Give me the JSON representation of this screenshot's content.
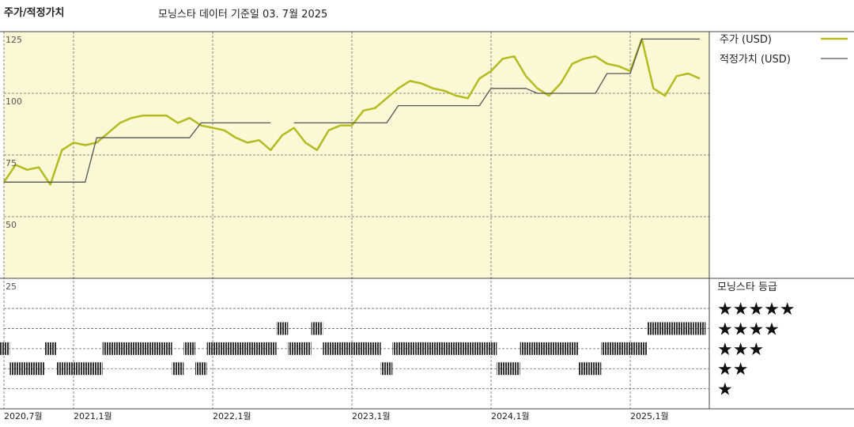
{
  "chart_data": [
    {
      "type": "line",
      "title": "주가/적정가치",
      "subtitle": "모닝스타 데이터 기준일 03. 7월 2025",
      "x": [
        "2020-07",
        "2020-08",
        "2020-09",
        "2020-10",
        "2020-11",
        "2020-12",
        "2021-01",
        "2021-02",
        "2021-03",
        "2021-04",
        "2021-05",
        "2021-06",
        "2021-07",
        "2021-08",
        "2021-09",
        "2021-10",
        "2021-11",
        "2021-12",
        "2022-01",
        "2022-02",
        "2022-03",
        "2022-04",
        "2022-05",
        "2022-06",
        "2022-07",
        "2022-08",
        "2022-09",
        "2022-10",
        "2022-11",
        "2022-12",
        "2023-01",
        "2023-02",
        "2023-03",
        "2023-04",
        "2023-05",
        "2023-06",
        "2023-07",
        "2023-08",
        "2023-09",
        "2023-10",
        "2023-11",
        "2023-12",
        "2024-01",
        "2024-02",
        "2024-03",
        "2024-04",
        "2024-05",
        "2024-06",
        "2024-07",
        "2024-08",
        "2024-09",
        "2024-10",
        "2024-11",
        "2024-12",
        "2025-01",
        "2025-02",
        "2025-03",
        "2025-04",
        "2025-05",
        "2025-06",
        "2025-07"
      ],
      "xlim": [
        "2020-07",
        "2025-07"
      ],
      "xticks": [
        {
          "value": "2020-07",
          "label": "2020,7월"
        },
        {
          "value": "2021-01",
          "label": "2021,1월"
        },
        {
          "value": "2022-01",
          "label": "2022,1월"
        },
        {
          "value": "2023-01",
          "label": "2023,1월"
        },
        {
          "value": "2024-01",
          "label": "2024,1월"
        },
        {
          "value": "2025-01",
          "label": "2025,1월"
        }
      ],
      "ylim": [
        25,
        125
      ],
      "yticks": [
        25,
        50,
        75,
        100,
        125
      ],
      "grid": true,
      "series": [
        {
          "name": "주가 (USD)",
          "color": "#b3bb1e",
          "values": [
            64,
            71,
            69,
            70,
            63,
            77,
            80,
            79,
            80,
            84,
            88,
            90,
            91,
            91,
            91,
            88,
            90,
            87,
            86,
            85,
            82,
            80,
            81,
            77,
            83,
            86,
            80,
            77,
            85,
            87,
            87,
            93,
            94,
            98,
            102,
            105,
            104,
            102,
            101,
            99,
            98,
            106,
            109,
            114,
            115,
            107,
            102,
            99,
            104,
            112,
            114,
            115,
            112,
            111,
            109,
            122,
            102,
            99,
            107,
            108,
            106
          ]
        },
        {
          "name": "적정가치 (USD)",
          "color": "#555555",
          "values": [
            64,
            64,
            64,
            64,
            64,
            64,
            64,
            64,
            82,
            82,
            82,
            82,
            82,
            82,
            82,
            82,
            82,
            88,
            88,
            88,
            88,
            88,
            88,
            88,
            null,
            88,
            88,
            88,
            88,
            88,
            88,
            88,
            88,
            88,
            95,
            95,
            95,
            95,
            95,
            95,
            95,
            95,
            102,
            102,
            102,
            102,
            100,
            100,
            100,
            100,
            100,
            100,
            108,
            108,
            108,
            122,
            122,
            122,
            122,
            122,
            122
          ]
        }
      ]
    },
    {
      "type": "strip",
      "title": "모닝스타 등급",
      "ylim": [
        0,
        6.5
      ],
      "yticks": [
        {
          "value": 5,
          "label": "★★★★★"
        },
        {
          "value": 4,
          "label": "★★★★"
        },
        {
          "value": 3,
          "label": "★★★"
        },
        {
          "value": 2,
          "label": "★★"
        },
        {
          "value": 1,
          "label": "★"
        }
      ],
      "color": "#333333",
      "values": [
        3,
        2,
        2,
        2,
        3,
        2,
        2,
        2,
        2,
        3,
        3,
        3,
        3,
        3,
        3,
        2,
        3,
        2,
        3,
        3,
        3,
        3,
        3,
        3,
        4,
        3,
        3,
        4,
        3,
        3,
        3,
        3,
        3,
        2,
        3,
        3,
        3,
        3,
        3,
        3,
        3,
        3,
        3,
        2,
        2,
        3,
        3,
        3,
        3,
        3,
        2,
        2,
        3,
        3,
        3,
        3,
        4,
        4,
        4,
        4,
        4
      ]
    }
  ]
}
